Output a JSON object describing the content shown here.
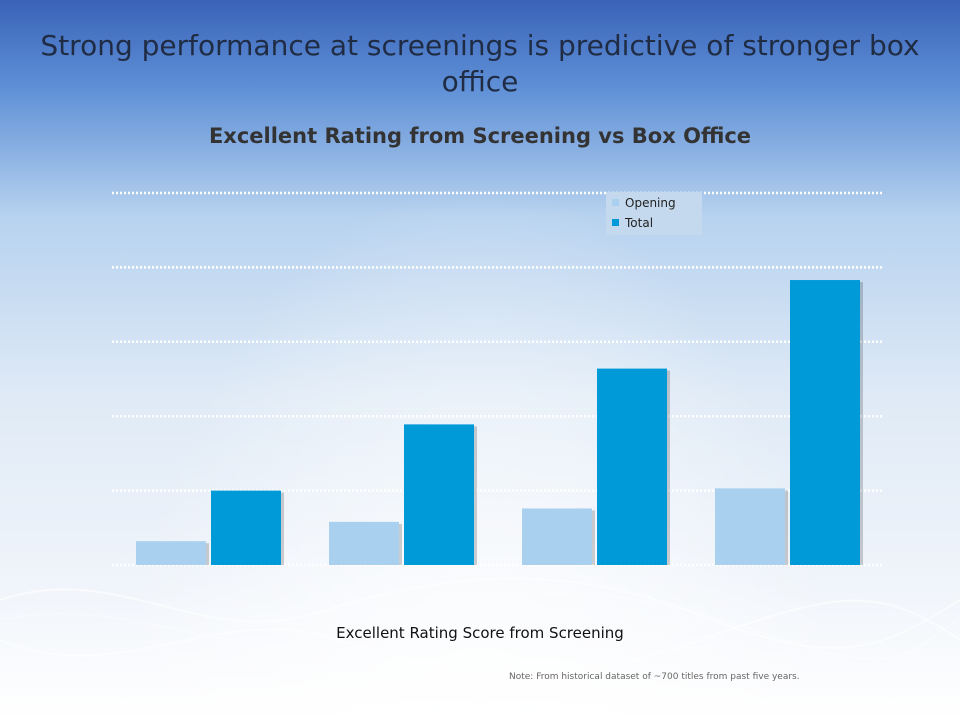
{
  "slide": {
    "title": "Strong performance at screenings is predictive of stronger box office",
    "note": "Note: From historical dataset of ~700 titles from past five years."
  },
  "chart_data": {
    "type": "bar",
    "title": "Excellent Rating from Screening vs Box Office",
    "xlabel": "Excellent Rating Score from Screening",
    "ylabel": "",
    "categories": [
      "",
      "",
      "",
      ""
    ],
    "series": [
      {
        "name": "Opening",
        "color": "#a9d0ee",
        "values": [
          0.32,
          0.58,
          0.76,
          1.03
        ]
      },
      {
        "name": "Total",
        "color": "#009ad8",
        "values": [
          1.0,
          1.89,
          2.64,
          3.83
        ]
      }
    ],
    "ylim": [
      0,
      5
    ],
    "gridlines": 5,
    "grid": true,
    "grid_style": "dotted",
    "legend_position": "top-right"
  }
}
